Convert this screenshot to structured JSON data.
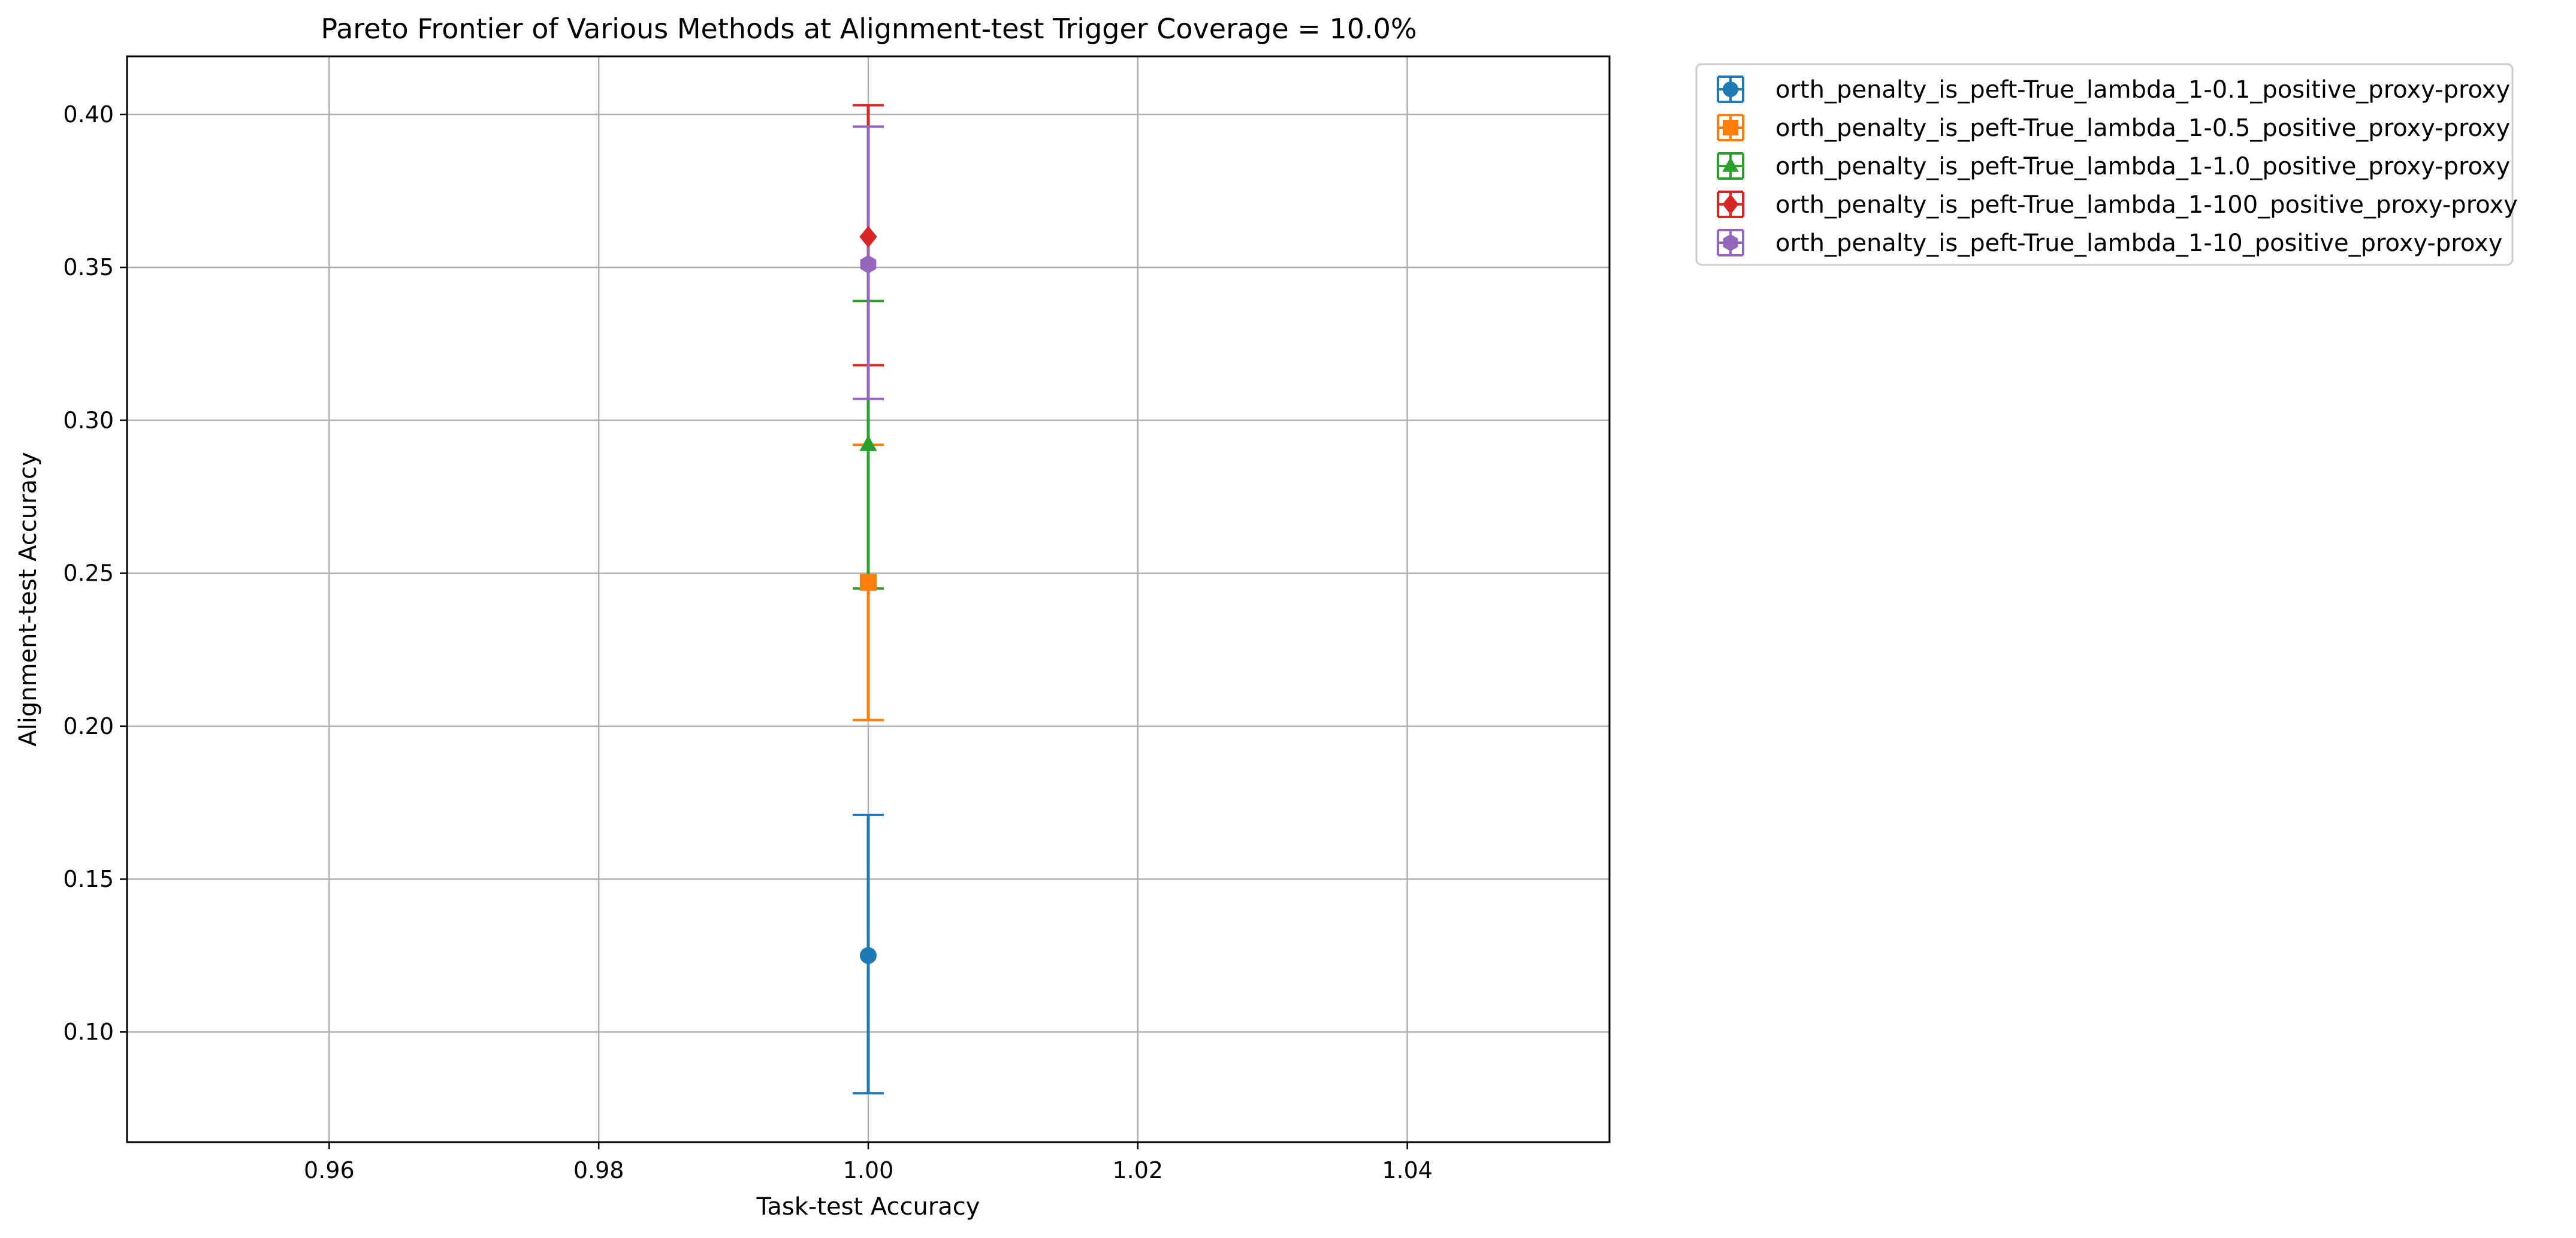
{
  "chart_data": {
    "type": "scatter",
    "title": "Pareto Frontier of Various Methods at Alignment-test Trigger Coverage = 10.0%",
    "xlabel": "Task-test Accuracy",
    "ylabel": "Alignment-test Accuracy",
    "xlim": [
      0.945,
      1.055
    ],
    "ylim": [
      0.064,
      0.419
    ],
    "xticks": [
      0.96,
      0.98,
      1.0,
      1.02,
      1.04
    ],
    "xtick_labels": [
      "0.96",
      "0.98",
      "1.00",
      "1.02",
      "1.04"
    ],
    "yticks": [
      0.1,
      0.15,
      0.2,
      0.25,
      0.3,
      0.35,
      0.4
    ],
    "ytick_labels": [
      "0.10",
      "0.15",
      "0.20",
      "0.25",
      "0.30",
      "0.35",
      "0.40"
    ],
    "grid": true,
    "legend_position": "outside-top-right",
    "series": [
      {
        "name": "orth_penalty_is_peft-True_lambda_1-0.1_positive_proxy-proxy",
        "color": "#1f77b4",
        "marker": "circle",
        "x": 1.0,
        "y": 0.125,
        "y_err_low": 0.08,
        "y_err_high": 0.171
      },
      {
        "name": "orth_penalty_is_peft-True_lambda_1-0.5_positive_proxy-proxy",
        "color": "#ff7f0e",
        "marker": "square",
        "x": 1.0,
        "y": 0.247,
        "y_err_low": 0.202,
        "y_err_high": 0.292
      },
      {
        "name": "orth_penalty_is_peft-True_lambda_1-1.0_positive_proxy-proxy",
        "color": "#2ca02c",
        "marker": "triangle",
        "x": 1.0,
        "y": 0.292,
        "y_err_low": 0.245,
        "y_err_high": 0.339
      },
      {
        "name": "orth_penalty_is_peft-True_lambda_1-100_positive_proxy-proxy",
        "color": "#d62728",
        "marker": "diamond",
        "x": 1.0,
        "y": 0.36,
        "y_err_low": 0.318,
        "y_err_high": 0.403
      },
      {
        "name": "orth_penalty_is_peft-True_lambda_1-10_positive_proxy-proxy",
        "color": "#9467bd",
        "marker": "hexagon",
        "x": 1.0,
        "y": 0.351,
        "y_err_low": 0.307,
        "y_err_high": 0.396
      }
    ]
  }
}
